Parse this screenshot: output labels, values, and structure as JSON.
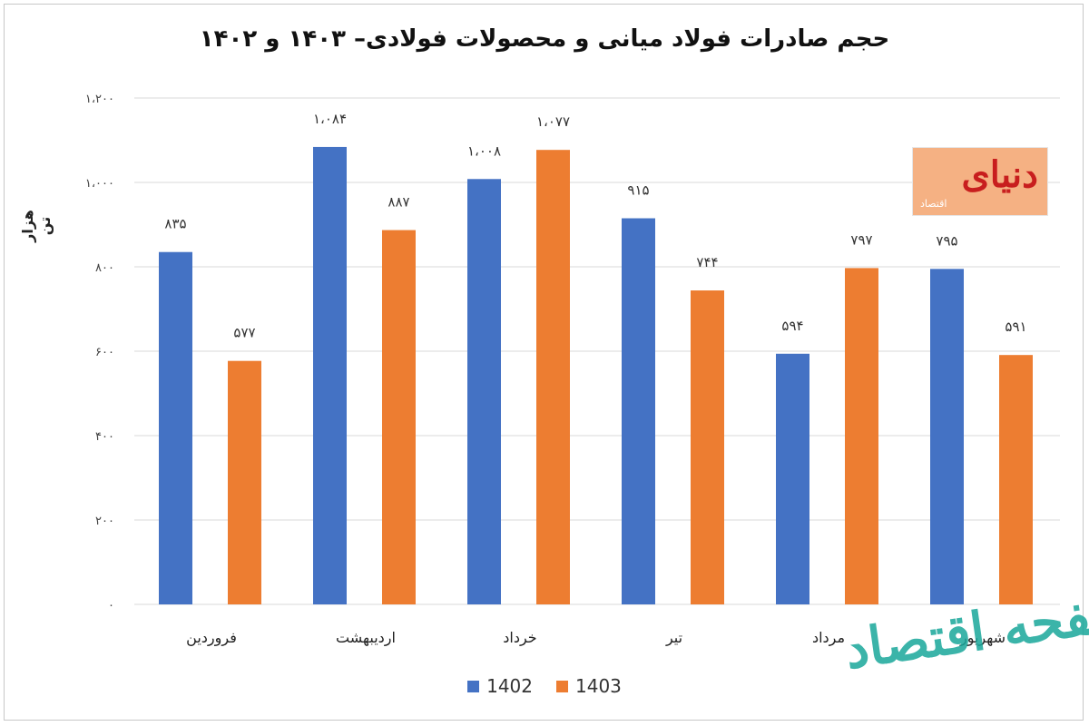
{
  "chart_data": {
    "type": "bar",
    "title": "حجم صادرات فولاد میانی و محصولات فولادی– ۱۴۰۳ و ۱۴۰۲",
    "ylabel": "هزار تن",
    "xlabel": "",
    "ylim": [
      0,
      1200
    ],
    "yticks": [
      0,
      200,
      400,
      600,
      800,
      1000,
      1200
    ],
    "ytick_labels": [
      "۰",
      "۲۰۰",
      "۴۰۰",
      "۶۰۰",
      "۸۰۰",
      "۱،۰۰۰",
      "۱،۲۰۰"
    ],
    "categories": [
      "فروردین",
      "اردیبهشت",
      "خرداد",
      "تیر",
      "مرداد",
      "شهریور"
    ],
    "series": [
      {
        "name": "1402",
        "color": "#4472c4",
        "values": [
          835,
          1084,
          1008,
          915,
          594,
          795
        ],
        "labels": [
          "۸۳۵",
          "۱،۰۸۴",
          "۱،۰۰۸",
          "۹۱۵",
          "۵۹۴",
          "۷۹۵"
        ]
      },
      {
        "name": "1403",
        "color": "#ed7d31",
        "values": [
          577,
          887,
          1077,
          744,
          797,
          591
        ],
        "labels": [
          "۵۷۷",
          "۸۸۷",
          "۱،۰۷۷",
          "۷۴۴",
          "۷۹۷",
          "۵۹۱"
        ]
      }
    ],
    "grid": true,
    "legend_position": "bottom"
  },
  "logo": {
    "text": "دنیای",
    "sub": "اقتصاد"
  },
  "watermark": {
    "text": "صفحه اقتصاد"
  }
}
